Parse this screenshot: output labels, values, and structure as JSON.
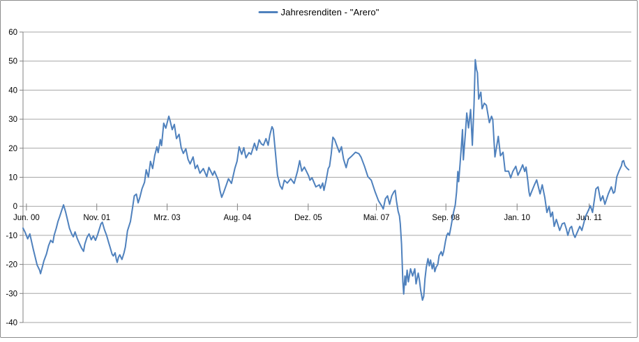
{
  "chart_data": {
    "type": "line",
    "title": "",
    "legend": {
      "label": "Jahresrenditen - \"Arero\"",
      "position": "top-center",
      "marker": "line"
    },
    "grid": "horizontal",
    "colors": {
      "series": "#4F81BD",
      "gridline": "#A6A6A6",
      "axis": "#808080",
      "text": "#000000",
      "border": "#8C8C8C",
      "background": "#FFFFFF"
    },
    "y_axis": {
      "label": "",
      "range": [
        -40,
        60
      ],
      "tick_step": 10,
      "ticks": [
        60,
        50,
        40,
        30,
        20,
        10,
        0,
        -10,
        -20,
        -30,
        -40
      ]
    },
    "x_axis": {
      "label": "",
      "unit": "months since Jun 2000",
      "range": [
        -0.8,
        141.9
      ],
      "ticks": [
        {
          "t": 0,
          "label": "Jun. 00"
        },
        {
          "t": 16.5,
          "label": "Nov. 01"
        },
        {
          "t": 33,
          "label": "Mrz. 03"
        },
        {
          "t": 49.5,
          "label": "Aug. 04"
        },
        {
          "t": 66.1,
          "label": "Dez. 05"
        },
        {
          "t": 82.1,
          "label": "Mai. 07"
        },
        {
          "t": 98.4,
          "label": "Sep. 08"
        },
        {
          "t": 115.1,
          "label": "Jan. 10"
        },
        {
          "t": 132,
          "label": "Jun. 11"
        }
      ]
    },
    "series": [
      {
        "name": "Jahresrenditen - \"Arero\"",
        "color": "#4F81BD",
        "points": [
          [
            -0.8,
            -7.5
          ],
          [
            -0.3,
            -9
          ],
          [
            0.3,
            -11.2
          ],
          [
            0.8,
            -9.5
          ],
          [
            1.6,
            -14.8
          ],
          [
            2.5,
            -20.2
          ],
          [
            3.1,
            -22
          ],
          [
            3.3,
            -23.2
          ],
          [
            3.8,
            -20.5
          ],
          [
            4.1,
            -18.8
          ],
          [
            4.7,
            -16.4
          ],
          [
            5.2,
            -13.5
          ],
          [
            5.7,
            -11.7
          ],
          [
            6.2,
            -12.5
          ],
          [
            6.5,
            -10
          ],
          [
            7,
            -7.5
          ],
          [
            7.4,
            -5.2
          ],
          [
            7.8,
            -3.5
          ],
          [
            8.2,
            -1.7
          ],
          [
            8.7,
            0.5
          ],
          [
            9.2,
            -2
          ],
          [
            9.6,
            -4.5
          ],
          [
            10.1,
            -7.6
          ],
          [
            10.6,
            -9.5
          ],
          [
            11,
            -10.5
          ],
          [
            11.4,
            -8.8
          ],
          [
            11.9,
            -11
          ],
          [
            12.3,
            -12.4
          ],
          [
            12.9,
            -14.3
          ],
          [
            13.4,
            -15.5
          ],
          [
            13.7,
            -13
          ],
          [
            14.2,
            -10.7
          ],
          [
            14.7,
            -9.5
          ],
          [
            15.2,
            -11.5
          ],
          [
            15.7,
            -10.2
          ],
          [
            16.2,
            -11.7
          ],
          [
            16.7,
            -9.8
          ],
          [
            17,
            -8.3
          ],
          [
            17.5,
            -6
          ],
          [
            17.8,
            -5.5
          ],
          [
            18.3,
            -8
          ],
          [
            18.8,
            -10
          ],
          [
            19.3,
            -12.5
          ],
          [
            19.6,
            -14
          ],
          [
            20.1,
            -16.5
          ],
          [
            20.4,
            -17.1
          ],
          [
            20.8,
            -16
          ],
          [
            21.1,
            -18.3
          ],
          [
            21.3,
            -19.3
          ],
          [
            21.6,
            -17.5
          ],
          [
            21.9,
            -16.7
          ],
          [
            22.4,
            -18.3
          ],
          [
            22.9,
            -16
          ],
          [
            23.2,
            -14
          ],
          [
            23.7,
            -8.5
          ],
          [
            24.4,
            -5.2
          ],
          [
            24.9,
            -0.5
          ],
          [
            25.3,
            3.6
          ],
          [
            25.8,
            4.2
          ],
          [
            26.2,
            1.2
          ],
          [
            26.6,
            3
          ],
          [
            27.1,
            6
          ],
          [
            27.7,
            8.3
          ],
          [
            28.1,
            12.6
          ],
          [
            28.6,
            10
          ],
          [
            29.1,
            15.5
          ],
          [
            29.6,
            13
          ],
          [
            30.1,
            17.5
          ],
          [
            30.6,
            20.5
          ],
          [
            30.9,
            18.5
          ],
          [
            31.4,
            23
          ],
          [
            31.7,
            20.9
          ],
          [
            32.2,
            28.6
          ],
          [
            32.7,
            26.9
          ],
          [
            33.4,
            31
          ],
          [
            33.7,
            29.5
          ],
          [
            34.2,
            26.4
          ],
          [
            34.7,
            28.2
          ],
          [
            35.2,
            23.3
          ],
          [
            35.8,
            24.8
          ],
          [
            36.3,
            20.2
          ],
          [
            36.8,
            18.2
          ],
          [
            37.4,
            19.8
          ],
          [
            37.9,
            16.2
          ],
          [
            38.4,
            14.6
          ],
          [
            39.1,
            17
          ],
          [
            39.6,
            13
          ],
          [
            40.1,
            14.2
          ],
          [
            40.7,
            11.4
          ],
          [
            41.5,
            13
          ],
          [
            42.3,
            10.2
          ],
          [
            42.8,
            13.4
          ],
          [
            43.7,
            10.7
          ],
          [
            44.1,
            12.1
          ],
          [
            45,
            9
          ],
          [
            45.4,
            5.5
          ],
          [
            45.8,
            3.1
          ],
          [
            46.2,
            4.5
          ],
          [
            46.9,
            7.4
          ],
          [
            47.4,
            9.5
          ],
          [
            48.1,
            7.9
          ],
          [
            48.9,
            13.1
          ],
          [
            49.4,
            15.5
          ],
          [
            49.9,
            20.5
          ],
          [
            50.5,
            17.9
          ],
          [
            51,
            20.2
          ],
          [
            51.5,
            16.7
          ],
          [
            52.2,
            18.5
          ],
          [
            52.7,
            17.9
          ],
          [
            53.5,
            21.7
          ],
          [
            54,
            19.3
          ],
          [
            54.6,
            22.9
          ],
          [
            55.1,
            21.5
          ],
          [
            55.6,
            21
          ],
          [
            56.2,
            23.3
          ],
          [
            56.7,
            21
          ],
          [
            57.1,
            24.5
          ],
          [
            57.6,
            27.4
          ],
          [
            57.9,
            26.5
          ],
          [
            58.4,
            18.6
          ],
          [
            58.9,
            10.7
          ],
          [
            59.5,
            7.1
          ],
          [
            60,
            5.9
          ],
          [
            60.5,
            9
          ],
          [
            61.2,
            8
          ],
          [
            62,
            9.5
          ],
          [
            62.8,
            7.9
          ],
          [
            63.6,
            12.1
          ],
          [
            64.1,
            15.7
          ],
          [
            64.6,
            12.1
          ],
          [
            65.2,
            13.5
          ],
          [
            65.7,
            12
          ],
          [
            66.2,
            10.5
          ],
          [
            66.5,
            9
          ],
          [
            67,
            9.8
          ],
          [
            67.9,
            6.7
          ],
          [
            68.7,
            7.4
          ],
          [
            69,
            6.2
          ],
          [
            69.5,
            8
          ],
          [
            69.8,
            5.5
          ],
          [
            70.3,
            9
          ],
          [
            70.8,
            13
          ],
          [
            71.1,
            13.8
          ],
          [
            71.5,
            18
          ],
          [
            71.9,
            23.8
          ],
          [
            72.3,
            23
          ],
          [
            72.8,
            21
          ],
          [
            73.4,
            18.6
          ],
          [
            73.9,
            20.5
          ],
          [
            74.4,
            16.2
          ],
          [
            75,
            13.3
          ],
          [
            75.5,
            16.2
          ],
          [
            76.4,
            17.4
          ],
          [
            77.2,
            18.6
          ],
          [
            78,
            18.1
          ],
          [
            78.5,
            16.9
          ],
          [
            79.3,
            13.8
          ],
          [
            80.1,
            10.2
          ],
          [
            80.9,
            9
          ],
          [
            81.8,
            5
          ],
          [
            82.6,
            1.9
          ],
          [
            83.4,
            0
          ],
          [
            83.7,
            -0.9
          ],
          [
            84.2,
            2.6
          ],
          [
            84.7,
            3.6
          ],
          [
            85.2,
            0.7
          ],
          [
            85.7,
            3.6
          ],
          [
            86.2,
            5
          ],
          [
            86.5,
            5.5
          ],
          [
            86.8,
            1.9
          ],
          [
            87.2,
            -1.7
          ],
          [
            87.5,
            -3.3
          ],
          [
            87.7,
            -6
          ],
          [
            88,
            -13
          ],
          [
            88.3,
            -26
          ],
          [
            88.5,
            -30.2
          ],
          [
            88.8,
            -24
          ],
          [
            89,
            -27.1
          ],
          [
            89.3,
            -22
          ],
          [
            89.6,
            -26
          ],
          [
            90.1,
            -21.5
          ],
          [
            90.6,
            -24
          ],
          [
            91.1,
            -21.5
          ],
          [
            91.4,
            -26.7
          ],
          [
            91.9,
            -23
          ],
          [
            92.2,
            -25.5
          ],
          [
            92.5,
            -29
          ],
          [
            92.9,
            -32.3
          ],
          [
            93.2,
            -31
          ],
          [
            93.5,
            -25
          ],
          [
            93.8,
            -21
          ],
          [
            94.2,
            -18
          ],
          [
            94.5,
            -20.5
          ],
          [
            94.8,
            -18.5
          ],
          [
            95.2,
            -21.5
          ],
          [
            95.5,
            -19.5
          ],
          [
            95.8,
            -22.5
          ],
          [
            96.1,
            -21
          ],
          [
            96.5,
            -20
          ],
          [
            96.8,
            -17
          ],
          [
            97.3,
            -15.6
          ],
          [
            97.6,
            -17
          ],
          [
            97.9,
            -15.5
          ],
          [
            98.3,
            -12
          ],
          [
            98.6,
            -10
          ],
          [
            98.9,
            -9.2
          ],
          [
            99.2,
            -10
          ],
          [
            99.6,
            -7
          ],
          [
            99.9,
            -4.5
          ],
          [
            100.2,
            -2
          ],
          [
            100.6,
            0.5
          ],
          [
            100.9,
            5
          ],
          [
            101.2,
            12
          ],
          [
            101.4,
            8.5
          ],
          [
            101.7,
            14
          ],
          [
            102,
            20
          ],
          [
            102.3,
            26.4
          ],
          [
            102.5,
            16
          ],
          [
            103,
            25.7
          ],
          [
            103.3,
            32.1
          ],
          [
            103.7,
            27
          ],
          [
            104.2,
            33.3
          ],
          [
            104.6,
            21
          ],
          [
            105,
            35
          ],
          [
            105.3,
            50.5
          ],
          [
            105.6,
            47
          ],
          [
            105.8,
            46
          ],
          [
            106.1,
            36.9
          ],
          [
            106.6,
            39.3
          ],
          [
            106.9,
            33.6
          ],
          [
            107.4,
            35.5
          ],
          [
            107.9,
            34.8
          ],
          [
            108.6,
            28.8
          ],
          [
            109.1,
            31
          ],
          [
            109.4,
            29.8
          ],
          [
            109.9,
            17
          ],
          [
            110.7,
            24.1
          ],
          [
            111.2,
            17.4
          ],
          [
            111.8,
            18.6
          ],
          [
            112.3,
            12.1
          ],
          [
            113.1,
            12.1
          ],
          [
            113.6,
            9.8
          ],
          [
            114.1,
            12
          ],
          [
            114.8,
            13.8
          ],
          [
            115.3,
            10.7
          ],
          [
            115.9,
            12.5
          ],
          [
            116.4,
            14.3
          ],
          [
            116.9,
            12
          ],
          [
            117.2,
            13.5
          ],
          [
            117.6,
            9
          ],
          [
            117.9,
            5
          ],
          [
            118.1,
            3.5
          ],
          [
            118.5,
            5
          ],
          [
            119.2,
            7.5
          ],
          [
            119.7,
            9.1
          ],
          [
            120.5,
            4.3
          ],
          [
            121,
            7.4
          ],
          [
            121.6,
            3
          ],
          [
            122.1,
            -2.1
          ],
          [
            122.6,
            0
          ],
          [
            123,
            -3.6
          ],
          [
            123.4,
            -2
          ],
          [
            123.8,
            -6.9
          ],
          [
            124.3,
            -4.5
          ],
          [
            125.1,
            -8.3
          ],
          [
            125.7,
            -6
          ],
          [
            126.2,
            -5.7
          ],
          [
            126.7,
            -8
          ],
          [
            127,
            -10
          ],
          [
            127.5,
            -7.5
          ],
          [
            127.9,
            -6.9
          ],
          [
            128.3,
            -9.5
          ],
          [
            128.7,
            -10.7
          ],
          [
            129.2,
            -9
          ],
          [
            129.8,
            -6.9
          ],
          [
            130.3,
            -8.3
          ],
          [
            130.8,
            -5.5
          ],
          [
            131.1,
            -3.6
          ],
          [
            131.6,
            -2.1
          ],
          [
            132.3,
            0.2
          ],
          [
            132.8,
            -2.1
          ],
          [
            133.6,
            6
          ],
          [
            134.1,
            6.7
          ],
          [
            134.7,
            1.9
          ],
          [
            135.2,
            3.6
          ],
          [
            135.7,
            0.7
          ],
          [
            136.5,
            4.3
          ],
          [
            137.2,
            6.7
          ],
          [
            137.7,
            4.5
          ],
          [
            138,
            5
          ],
          [
            138.5,
            10.2
          ],
          [
            139,
            12.1
          ],
          [
            139.6,
            14
          ],
          [
            139.8,
            15.5
          ],
          [
            140.1,
            15.7
          ],
          [
            140.4,
            14
          ],
          [
            140.9,
            13.1
          ],
          [
            141.3,
            12.6
          ]
        ]
      }
    ]
  }
}
